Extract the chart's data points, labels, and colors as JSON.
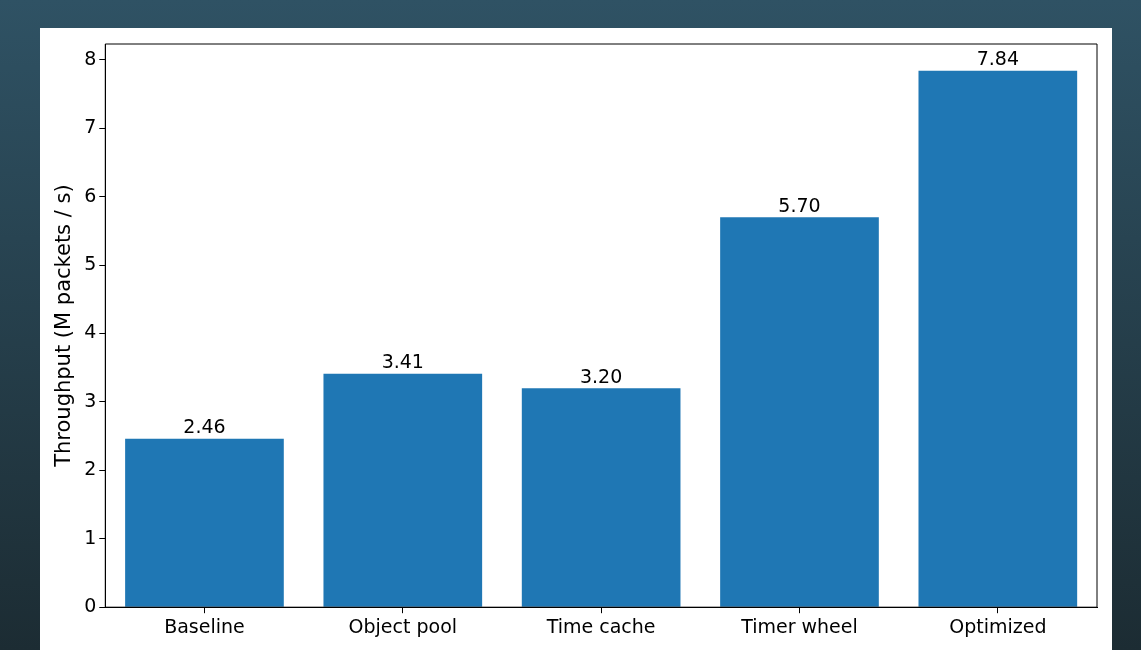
{
  "chart_data": {
    "type": "bar",
    "ylabel": "Throughput (M packets / s)",
    "categories": [
      "Baseline",
      "Object pool",
      "Time cache",
      "Timer wheel",
      "Optimized"
    ],
    "values": [
      2.46,
      3.41,
      3.2,
      5.7,
      7.84
    ],
    "color": "#1f77b4",
    "value_labels": [
      "2.46",
      "3.41",
      "3.20",
      "5.70",
      "7.84"
    ],
    "ylim": [
      0,
      8.23
    ],
    "yticks": [
      0,
      1,
      2,
      3,
      4,
      5,
      6,
      7,
      8
    ],
    "grid": false,
    "legend": false
  }
}
